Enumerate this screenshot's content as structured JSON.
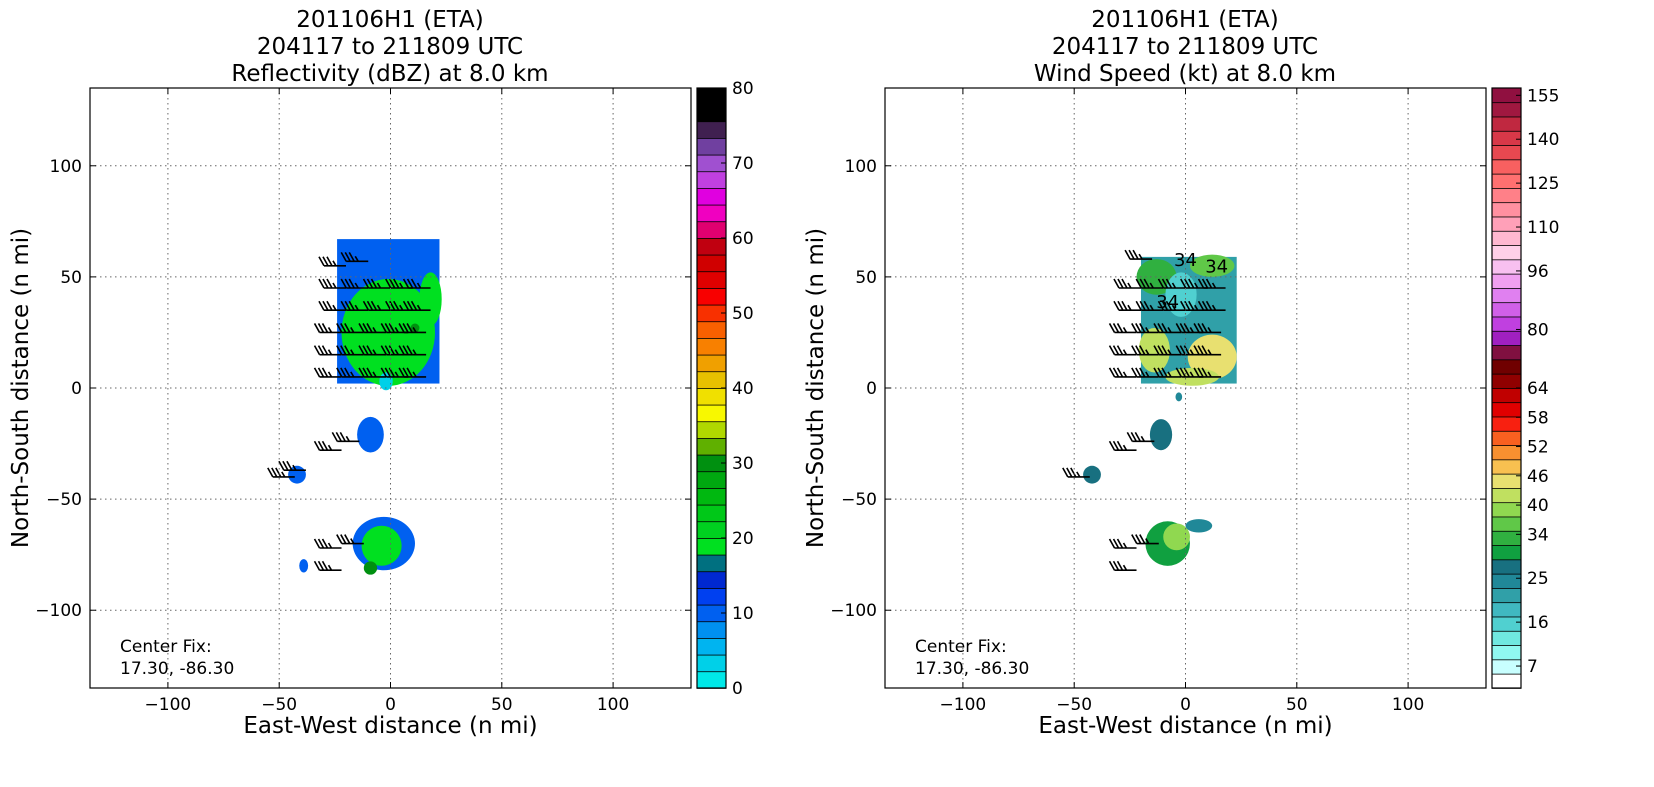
{
  "chart_data": [
    {
      "type": "heatmap",
      "title_lines": [
        "201106H1 (ETA)",
        "204117 to 211809 UTC",
        "Reflectivity (dBZ) at 8.0 km"
      ],
      "xlabel": "East-West distance (n mi)",
      "ylabel": "North-South distance (n mi)",
      "xlim": [
        -135,
        135
      ],
      "ylim": [
        -135,
        135
      ],
      "xticks": [
        -100,
        -50,
        0,
        50,
        100
      ],
      "yticks": [
        -100,
        -50,
        0,
        50,
        100
      ],
      "xtick_labels": [
        "−100",
        "−50",
        "0",
        "50",
        "100"
      ],
      "ytick_labels": [
        "−100",
        "−50",
        "0",
        "50",
        "100"
      ],
      "grid": true,
      "annotation": [
        "Center Fix:",
        "17.30, -86.30"
      ],
      "colorbar": {
        "min": 0,
        "max": 80,
        "step": 2.5,
        "ticks": [
          0,
          10,
          20,
          30,
          40,
          50,
          60,
          70,
          80
        ],
        "colors": [
          "#00e8e8",
          "#00d0e8",
          "#00b4f0",
          "#0090f0",
          "#0060f0",
          "#0040f0",
          "#0028d0",
          "#007080",
          "#00e020",
          "#00d020",
          "#00c818",
          "#00b810",
          "#00a810",
          "#009010",
          "#60b000",
          "#b0d800",
          "#f8f800",
          "#f0e000",
          "#e8c000",
          "#f0a000",
          "#f88000",
          "#f86000",
          "#f83000",
          "#f80000",
          "#e00000",
          "#d00000",
          "#c00010",
          "#e00070",
          "#f000c0",
          "#e000e0",
          "#c040e0",
          "#a050d0",
          "#7040a0",
          "#402050",
          "#000000",
          "#000000"
        ]
      },
      "field": {
        "regions": [
          {
            "shape": "rect",
            "x": [
              -24,
              22
            ],
            "y": [
              2,
              67
            ],
            "value": 12
          },
          {
            "shape": "ellipse",
            "cx": -1,
            "cy": 25,
            "rx": 21,
            "ry": 24,
            "value": 22
          },
          {
            "shape": "ellipse",
            "cx": 18,
            "cy": 40,
            "rx": 5,
            "ry": 12,
            "value": 21
          },
          {
            "shape": "ellipse",
            "cx": 11,
            "cy": 27,
            "rx": 2,
            "ry": 2,
            "value": 33
          },
          {
            "shape": "ellipse",
            "cx": -9,
            "cy": -21,
            "rx": 6,
            "ry": 8,
            "value": 11
          },
          {
            "shape": "ellipse",
            "cx": -2,
            "cy": 3,
            "rx": 3,
            "ry": 4,
            "value": 4
          },
          {
            "shape": "ellipse",
            "cx": -42,
            "cy": -39,
            "rx": 4,
            "ry": 4,
            "value": 10
          },
          {
            "shape": "ellipse",
            "cx": -39,
            "cy": -80,
            "rx": 2,
            "ry": 3,
            "value": 12
          },
          {
            "shape": "ellipse",
            "cx": -3,
            "cy": -70,
            "rx": 14,
            "ry": 12,
            "value": 11
          },
          {
            "shape": "ellipse",
            "cx": -4,
            "cy": -71,
            "rx": 9,
            "ry": 9,
            "value": 22
          },
          {
            "shape": "ellipse",
            "cx": -9,
            "cy": -81,
            "rx": 3,
            "ry": 3,
            "value": 34
          }
        ]
      },
      "barbs": {
        "points": [
          [
            -20,
            45
          ],
          [
            -10,
            45
          ],
          [
            0,
            45
          ],
          [
            10,
            45
          ],
          [
            18,
            45
          ],
          [
            -20,
            35
          ],
          [
            -10,
            35
          ],
          [
            0,
            35
          ],
          [
            10,
            35
          ],
          [
            18,
            35
          ],
          [
            -22,
            25
          ],
          [
            -12,
            25
          ],
          [
            -2,
            25
          ],
          [
            8,
            25
          ],
          [
            16,
            25
          ],
          [
            -22,
            15
          ],
          [
            -12,
            15
          ],
          [
            -2,
            15
          ],
          [
            8,
            15
          ],
          [
            16,
            15
          ],
          [
            -22,
            5
          ],
          [
            -12,
            5
          ],
          [
            -2,
            5
          ],
          [
            8,
            5
          ],
          [
            16,
            5
          ],
          [
            -20,
            55
          ],
          [
            -10,
            57
          ],
          [
            -22,
            -28
          ],
          [
            -14,
            -24
          ],
          [
            -43,
            -40
          ],
          [
            -38,
            -37
          ],
          [
            -22,
            -72
          ],
          [
            -22,
            -82
          ],
          [
            -12,
            -70
          ]
        ],
        "speed_kt": 35
      }
    },
    {
      "type": "heatmap",
      "title_lines": [
        "201106H1 (ETA)",
        "204117 to 211809 UTC",
        "Wind Speed (kt) at 8.0 km"
      ],
      "xlabel": "East-West distance (n mi)",
      "ylabel": "North-South distance (n mi)",
      "xlim": [
        -135,
        135
      ],
      "ylim": [
        -135,
        135
      ],
      "xticks": [
        -100,
        -50,
        0,
        50,
        100
      ],
      "yticks": [
        -100,
        -50,
        0,
        50,
        100
      ],
      "xtick_labels": [
        "−100",
        "−50",
        "0",
        "50",
        "100"
      ],
      "ytick_labels": [
        "−100",
        "−50",
        "0",
        "50",
        "100"
      ],
      "grid": true,
      "annotation": [
        "Center Fix:",
        "17.30, -86.30"
      ],
      "contour_labels": [
        {
          "text": "34",
          "x": 0,
          "y": 55
        },
        {
          "text": "34",
          "x": 14,
          "y": 52
        },
        {
          "text": "34",
          "x": -8,
          "y": 36
        }
      ],
      "colorbar": {
        "min": 7,
        "max": 160,
        "boundaries": [
          4,
          7,
          10,
          13,
          16,
          19,
          22,
          25,
          28,
          31,
          34,
          37,
          40,
          43,
          46,
          49,
          52,
          55,
          58,
          61,
          64,
          68,
          72,
          76,
          80,
          84,
          88,
          92,
          96,
          100,
          105,
          110,
          115,
          120,
          125,
          130,
          135,
          140,
          145,
          150,
          155,
          160
        ],
        "ticks": [
          7,
          16,
          25,
          34,
          40,
          46,
          52,
          58,
          64,
          80,
          96,
          110,
          125,
          140,
          155
        ],
        "colors": [
          "#ffffff",
          "#c8ffff",
          "#90f8f0",
          "#70e8e0",
          "#50d0d0",
          "#40b8c0",
          "#30a0a8",
          "#208898",
          "#187080",
          "#10a040",
          "#30b040",
          "#60c848",
          "#90d850",
          "#c0e060",
          "#e8e070",
          "#f8c050",
          "#f89030",
          "#f86020",
          "#f82010",
          "#e00000",
          "#c00000",
          "#900000",
          "#700000",
          "#801040",
          "#a020c0",
          "#c040e0",
          "#d060e8",
          "#e080f0",
          "#f0a0f0",
          "#f8c0f0",
          "#ffd0e8",
          "#ffb8d0",
          "#ffa0b8",
          "#ff90a0",
          "#ff8088",
          "#ff7070",
          "#f86060",
          "#e84850",
          "#d83848",
          "#c02840",
          "#a01840",
          "#901040"
        ]
      },
      "field": {
        "regions": [
          {
            "shape": "rect",
            "x": [
              -20,
              23
            ],
            "y": [
              2,
              59
            ],
            "value": 24
          },
          {
            "shape": "ellipse",
            "cx": -13,
            "cy": 50,
            "rx": 9,
            "ry": 8,
            "value": 36
          },
          {
            "shape": "ellipse",
            "cx": 12,
            "cy": 55,
            "rx": 10,
            "ry": 5,
            "value": 38
          },
          {
            "shape": "ellipse",
            "cx": -14,
            "cy": 17,
            "rx": 7,
            "ry": 10,
            "value": 44
          },
          {
            "shape": "ellipse",
            "cx": 12,
            "cy": 14,
            "rx": 11,
            "ry": 10,
            "value": 47
          },
          {
            "shape": "ellipse",
            "cx": 3,
            "cy": 5,
            "rx": 12,
            "ry": 4,
            "value": 44
          },
          {
            "shape": "ellipse",
            "cx": -2,
            "cy": 42,
            "rx": 7,
            "ry": 10,
            "value": 18
          },
          {
            "shape": "ellipse",
            "cx": -11,
            "cy": -21,
            "rx": 5,
            "ry": 7,
            "value": 30
          },
          {
            "shape": "ellipse",
            "cx": -3,
            "cy": -4,
            "rx": 1.5,
            "ry": 2,
            "value": 26
          },
          {
            "shape": "ellipse",
            "cx": -42,
            "cy": -39,
            "rx": 4,
            "ry": 4,
            "value": 29
          },
          {
            "shape": "ellipse",
            "cx": -8,
            "cy": -70,
            "rx": 10,
            "ry": 10,
            "value": 31
          },
          {
            "shape": "ellipse",
            "cx": -4,
            "cy": -67,
            "rx": 6,
            "ry": 6,
            "value": 42
          },
          {
            "shape": "ellipse",
            "cx": 6,
            "cy": -62,
            "rx": 6,
            "ry": 3,
            "value": 26
          }
        ]
      },
      "barbs": {
        "points": [
          [
            -20,
            45
          ],
          [
            -10,
            45
          ],
          [
            0,
            45
          ],
          [
            10,
            45
          ],
          [
            18,
            45
          ],
          [
            -20,
            35
          ],
          [
            -10,
            35
          ],
          [
            0,
            35
          ],
          [
            10,
            35
          ],
          [
            18,
            35
          ],
          [
            -22,
            25
          ],
          [
            -12,
            25
          ],
          [
            -2,
            25
          ],
          [
            8,
            25
          ],
          [
            16,
            25
          ],
          [
            -22,
            15
          ],
          [
            -12,
            15
          ],
          [
            -2,
            15
          ],
          [
            8,
            15
          ],
          [
            16,
            15
          ],
          [
            -22,
            5
          ],
          [
            -12,
            5
          ],
          [
            -2,
            5
          ],
          [
            8,
            5
          ],
          [
            16,
            5
          ],
          [
            -15,
            58
          ],
          [
            -22,
            -28
          ],
          [
            -14,
            -24
          ],
          [
            -43,
            -40
          ],
          [
            -22,
            -72
          ],
          [
            -22,
            -82
          ],
          [
            -12,
            -70
          ]
        ],
        "speed_kt": 35
      }
    }
  ]
}
